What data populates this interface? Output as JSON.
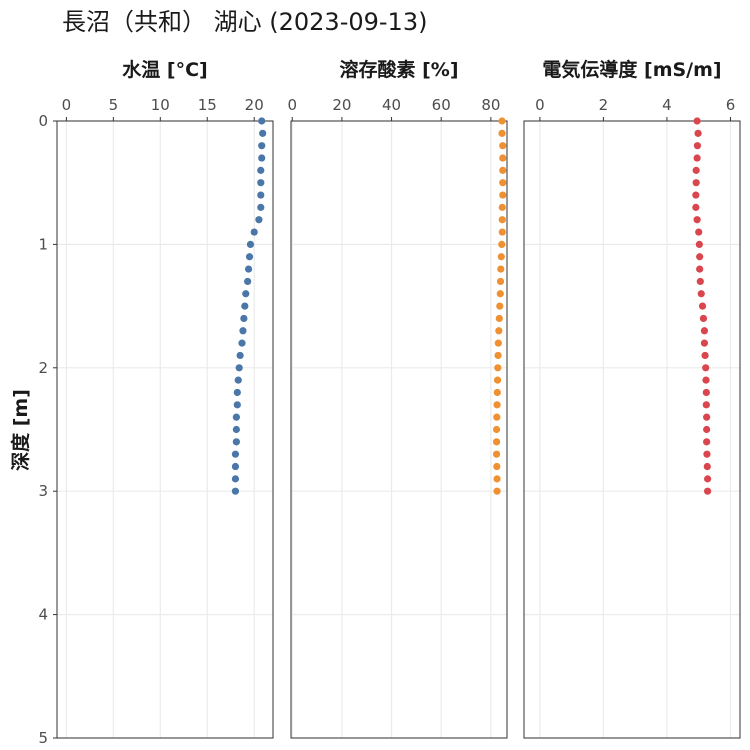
{
  "chart_data": {
    "type": "scatter",
    "title": "長沼（共和） 湖心 (2023-09-13)",
    "ylabel": "深度 [m]",
    "y": {
      "range": [
        0,
        5
      ],
      "reversed": true,
      "ticks": [
        0,
        1,
        2,
        3,
        4,
        5
      ],
      "tick_labels": [
        "0",
        "1",
        "2",
        "3",
        "4",
        "5"
      ]
    },
    "grid": true,
    "depths": [
      0.0,
      0.1,
      0.2,
      0.3,
      0.4,
      0.5,
      0.6,
      0.7,
      0.8,
      0.9,
      1.0,
      1.1,
      1.2,
      1.3,
      1.4,
      1.5,
      1.6,
      1.7,
      1.8,
      1.9,
      2.0,
      2.1,
      2.2,
      2.3,
      2.4,
      2.5,
      2.6,
      2.7,
      2.8,
      2.9,
      3.0
    ],
    "panels": [
      {
        "title": "水温 [°C]",
        "color": "#4a76a8",
        "xlim": [
          -1,
          22
        ],
        "xticks": [
          0,
          5,
          10,
          15,
          20
        ],
        "xtick_labels": [
          "0",
          "5",
          "10",
          "15",
          "20"
        ],
        "values": [
          20.8,
          20.9,
          20.8,
          20.8,
          20.7,
          20.7,
          20.7,
          20.7,
          20.5,
          20.0,
          19.6,
          19.5,
          19.4,
          19.3,
          19.1,
          19.0,
          18.9,
          18.8,
          18.7,
          18.5,
          18.4,
          18.3,
          18.2,
          18.2,
          18.1,
          18.1,
          18.1,
          18.0,
          18.0,
          18.0,
          18.0
        ]
      },
      {
        "title": "溶存酸素 [%]",
        "color": "#ef9133",
        "xlim": [
          -0.5,
          86.5
        ],
        "xticks": [
          0,
          20,
          40,
          60,
          80
        ],
        "xtick_labels": [
          "0",
          "20",
          "40",
          "60",
          "80"
        ],
        "values": [
          84.5,
          84.5,
          84.8,
          84.8,
          84.8,
          84.8,
          84.8,
          84.6,
          84.6,
          84.6,
          84.4,
          84.2,
          84.0,
          83.9,
          83.8,
          83.6,
          83.4,
          83.2,
          83.0,
          82.9,
          82.8,
          82.7,
          82.6,
          82.5,
          82.4,
          82.3,
          82.3,
          82.3,
          82.4,
          82.5,
          82.5
        ]
      },
      {
        "title": "電気伝導度 [mS/m]",
        "color": "#d9464e",
        "xlim": [
          -0.5,
          6.3
        ],
        "xticks": [
          0,
          2,
          4,
          6
        ],
        "xtick_labels": [
          "0",
          "2",
          "4",
          "6"
        ],
        "values": [
          4.95,
          4.98,
          4.96,
          4.95,
          4.92,
          4.92,
          4.91,
          4.91,
          4.95,
          5.0,
          5.02,
          5.03,
          5.03,
          5.05,
          5.08,
          5.12,
          5.15,
          5.18,
          5.18,
          5.2,
          5.22,
          5.23,
          5.24,
          5.24,
          5.25,
          5.25,
          5.25,
          5.26,
          5.27,
          5.28,
          5.28
        ]
      }
    ]
  }
}
